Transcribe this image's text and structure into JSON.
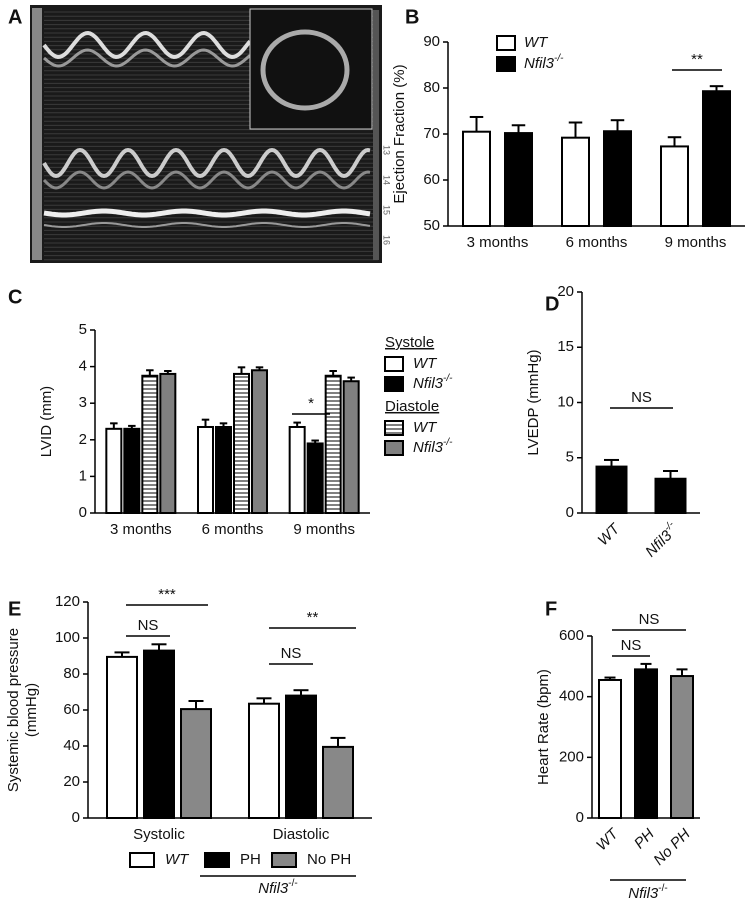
{
  "image_panel": {
    "label": "A",
    "scale_labels": [
      "13",
      "14",
      "15",
      "16"
    ]
  },
  "chart_data": [
    {
      "type": "bar",
      "panel": "B",
      "y_label": [
        "Ejection Fraction (%)"
      ],
      "ylim": [
        50,
        90
      ],
      "yticks": [
        50,
        60,
        70,
        80,
        90
      ],
      "categories": [
        "3 months",
        "6 months",
        "9 months"
      ],
      "series": [
        {
          "name": "WT",
          "color": "#ffffff",
          "values": [
            70.5,
            69.2,
            67.3
          ],
          "errors": [
            3.2,
            3.3,
            2.0
          ]
        },
        {
          "name": "Nfil3-/-",
          "color": "#000000",
          "values": [
            70.2,
            70.6,
            79.3
          ],
          "errors": [
            1.7,
            2.4,
            1.1
          ]
        }
      ],
      "annotations": [
        "**"
      ]
    },
    {
      "type": "bar",
      "panel": "C",
      "y_label": [
        "LVID (mm)"
      ],
      "ylim": [
        0,
        5
      ],
      "yticks": [
        0,
        1,
        2,
        3,
        4,
        5
      ],
      "categories": [
        "3 months",
        "6 months",
        "9 months"
      ],
      "series_groups": [
        "Systole",
        "Diastole"
      ],
      "series": [
        {
          "name": "WT",
          "color": "#ffffff",
          "values": [
            2.3,
            2.35,
            2.35
          ],
          "errors": [
            0.15,
            0.2,
            0.12
          ]
        },
        {
          "name": "Nfil3-/-",
          "color": "#000000",
          "values": [
            2.3,
            2.35,
            1.9
          ],
          "errors": [
            0.08,
            0.1,
            0.08
          ]
        },
        {
          "name": "WT",
          "color": "#ffffff",
          "hatch": true,
          "values": [
            3.75,
            3.8,
            3.75
          ],
          "errors": [
            0.15,
            0.18,
            0.13
          ]
        },
        {
          "name": "Nfil3-/-",
          "color": "#808080",
          "values": [
            3.8,
            3.9,
            3.6
          ],
          "errors": [
            0.08,
            0.08,
            0.1
          ]
        }
      ],
      "annotations": [
        "*"
      ]
    },
    {
      "type": "bar",
      "panel": "D",
      "y_label": [
        "LVEDP (mmHg)"
      ],
      "ylim": [
        0,
        20
      ],
      "yticks": [
        0,
        5,
        10,
        15,
        20
      ],
      "categories": [
        "WT",
        "Nfil3-/-"
      ],
      "color": "#000000",
      "values": [
        4.2,
        3.1
      ],
      "errors": [
        0.6,
        0.7
      ],
      "annotations": [
        "NS"
      ]
    },
    {
      "type": "bar",
      "panel": "E",
      "y_label": [
        "Systemic blood pressure",
        "(mmHg)"
      ],
      "ylim": [
        0,
        120
      ],
      "yticks": [
        0,
        20,
        40,
        60,
        80,
        100,
        120
      ],
      "categories": [
        "Systolic",
        "Diastolic"
      ],
      "series": [
        {
          "name": "WT",
          "color": "#ffffff",
          "values": [
            89.5,
            63.5
          ],
          "errors": [
            2.5,
            3.0
          ]
        },
        {
          "name": "PH",
          "color": "#000000",
          "values": [
            93,
            68
          ],
          "errors": [
            3.5,
            3.0
          ]
        },
        {
          "name": "No PH",
          "color": "#888888",
          "values": [
            60.5,
            39.5
          ],
          "errors": [
            4.5,
            5.0
          ]
        }
      ],
      "group_label": "Nfil3-/-",
      "annotations": [
        "NS",
        "***",
        "NS",
        "**"
      ]
    },
    {
      "type": "bar",
      "panel": "F",
      "y_label": [
        "Heart Rate (bpm)"
      ],
      "ylim": [
        0,
        600
      ],
      "yticks": [
        0,
        200,
        400,
        600
      ],
      "categories": [
        "WT",
        "PH",
        "No PH"
      ],
      "colors": [
        "#ffffff",
        "#000000",
        "#888888"
      ],
      "values": [
        455,
        490,
        468
      ],
      "errors": [
        8,
        18,
        22
      ],
      "group_label": "Nfil3-/-",
      "annotations": [
        "NS",
        "NS"
      ]
    }
  ]
}
